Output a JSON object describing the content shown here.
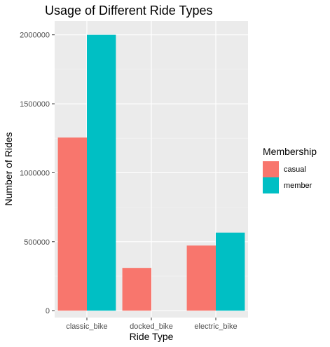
{
  "chart_data": {
    "type": "bar",
    "title": "Usage of Different Ride Types",
    "xlabel": "Ride Type",
    "ylabel": "Number of Rides",
    "categories": [
      "classic_bike",
      "docked_bike",
      "electric_bike"
    ],
    "series": [
      {
        "name": "casual",
        "values": [
          1255000,
          310000,
          472000
        ]
      },
      {
        "name": "member",
        "values": [
          2000000,
          0,
          566000
        ]
      }
    ],
    "yticks": [
      0,
      500000,
      1000000,
      1500000,
      2000000
    ],
    "ytick_labels": [
      "0",
      "500000",
      "1000000",
      "1500000",
      "2000000"
    ],
    "ylim": [
      -50000,
      2100000
    ],
    "grid": true,
    "legend": {
      "title": "Membership",
      "position": "right"
    },
    "colors": {
      "casual": "#F8766D",
      "member": "#00BFC4",
      "panel": "#EBEBEB",
      "grid_major": "#FFFFFF",
      "grid_minor": "#F2F2F2"
    }
  }
}
